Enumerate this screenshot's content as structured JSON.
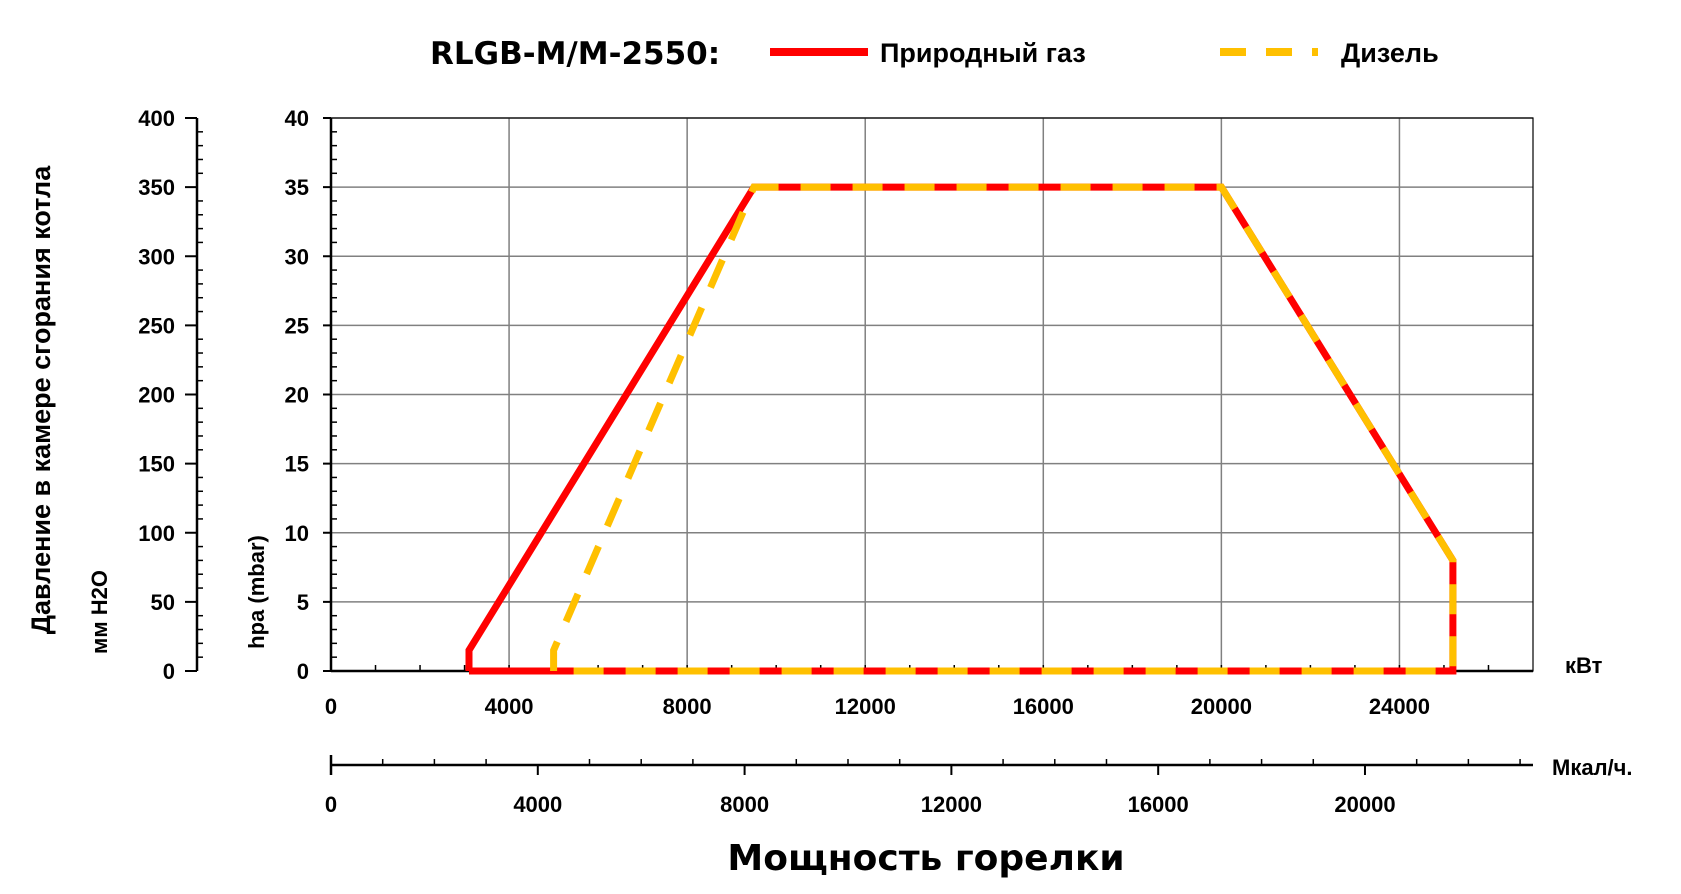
{
  "chart_data": {
    "type": "line",
    "title": "RLGB-M/M-2550:",
    "xlabel": "Мощность горелки",
    "x_unit_kw": "кВт",
    "x_unit_mcal": "Мкал/ч.",
    "ylabel_outer": "Давление в камере сгорания котла",
    "ylabel_outer_unit": "мм H2O",
    "ylabel_inner": "hpa (mbar)",
    "xlim": [
      0,
      27000
    ],
    "ylim": [
      0,
      40
    ],
    "ylim_mmh2o": [
      0,
      400
    ],
    "xlim_mcal": [
      0,
      23250
    ],
    "x_ticks_kw": [
      "0",
      "4000",
      "8000",
      "12000",
      "16000",
      "20000",
      "24000"
    ],
    "x_ticks_mcal": [
      "0",
      "4000",
      "8000",
      "12000",
      "16000",
      "20000"
    ],
    "y_ticks_mbar": [
      "0",
      "5",
      "10",
      "15",
      "20",
      "25",
      "30",
      "35",
      "40"
    ],
    "y_ticks_mmh2o": [
      "0",
      "50",
      "100",
      "150",
      "200",
      "250",
      "300",
      "350",
      "400"
    ],
    "grid": true,
    "legend_position": "top",
    "series": [
      {
        "name": "Природный газ",
        "color": "#ff0000",
        "style": "solid",
        "points": [
          [
            3100,
            0
          ],
          [
            3100,
            1.5
          ],
          [
            9500,
            35
          ],
          [
            20000,
            35
          ],
          [
            25200,
            8
          ],
          [
            25200,
            0
          ],
          [
            3100,
            0
          ]
        ]
      },
      {
        "name": "Дизель",
        "color": "#ffc000",
        "style": "dashed",
        "points": [
          [
            5000,
            0
          ],
          [
            5000,
            1.5
          ],
          [
            9500,
            35
          ],
          [
            20000,
            35
          ],
          [
            25200,
            8
          ],
          [
            25200,
            0
          ],
          [
            5000,
            0
          ]
        ]
      }
    ]
  }
}
